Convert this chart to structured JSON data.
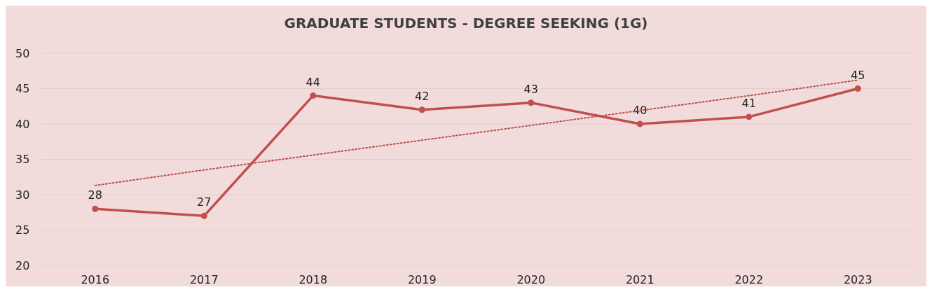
{
  "chart_data": {
    "type": "line",
    "title": "GRADUATE STUDENTS - DEGREE SEEKING (1G)",
    "categories": [
      "2016",
      "2017",
      "2018",
      "2019",
      "2020",
      "2021",
      "2022",
      "2023"
    ],
    "series": [
      {
        "color": "#c0504d",
        "values": [
          28,
          27,
          44,
          42,
          43,
          40,
          41,
          45
        ],
        "marker": "circle",
        "data_labels": true
      },
      {
        "type": "line",
        "color": "#c0504d",
        "values": [
          31.3,
          33.5,
          35.6,
          37.7,
          39.8,
          41.9,
          44.0,
          46.2
        ],
        "marker": "none",
        "line_style": "dotted"
      }
    ],
    "ylim": [
      20,
      50
    ],
    "yticks": [
      20,
      25,
      30,
      35,
      40,
      45,
      50
    ],
    "grid": "y"
  }
}
